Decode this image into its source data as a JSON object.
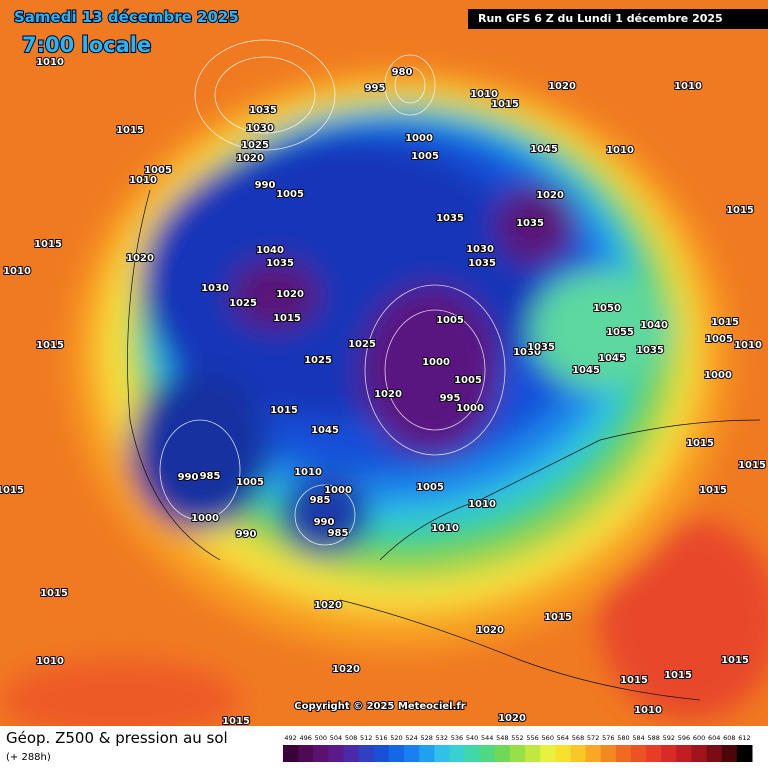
{
  "header": {
    "date": "Samedi 13 décembre 2025",
    "time": "7:00 locale",
    "run": "Run GFS 6 Z du Lundi 1 décembre 2025"
  },
  "map": {
    "copyright": "Copyright © 2025 Meteociel.fr",
    "pressure_labels": [
      "1010",
      "1035",
      "1030",
      "1025",
      "1020",
      "1015",
      "1010",
      "1005",
      "990",
      "1005",
      "980",
      "995",
      "1010",
      "1015",
      "1020",
      "1010",
      "1000",
      "1005",
      "1045",
      "1010",
      "1020",
      "1035",
      "1035",
      "1030",
      "1035",
      "1015",
      "1010",
      "1015",
      "1020",
      "1030",
      "1025",
      "1040",
      "1035",
      "1020",
      "1015",
      "1005",
      "1000",
      "1005",
      "1020",
      "995",
      "1000",
      "1025",
      "1025",
      "1015",
      "1045",
      "1010",
      "990",
      "985",
      "1005",
      "1000",
      "990",
      "1000",
      "985",
      "990",
      "985",
      "1005",
      "1010",
      "1010",
      "1015",
      "1015",
      "1015",
      "1010",
      "1020",
      "1020",
      "1015",
      "1020",
      "1015",
      "1015",
      "1015",
      "1010",
      "1020",
      "1015",
      "1050",
      "1055",
      "1040",
      "1035",
      "1045",
      "1045",
      "1030",
      "1035",
      "1005",
      "1010",
      "1000",
      "1015",
      "1015",
      "1015",
      "1015"
    ]
  },
  "legend": {
    "title": "Géop. Z500 & pression au sol",
    "subtitle": "(+ 288h)",
    "scale": [
      "492",
      "496",
      "500",
      "504",
      "508",
      "512",
      "516",
      "520",
      "524",
      "528",
      "532",
      "536",
      "540",
      "544",
      "548",
      "552",
      "556",
      "560",
      "564",
      "568",
      "572",
      "576",
      "580",
      "584",
      "588",
      "592",
      "596",
      "600",
      "604",
      "608",
      "612"
    ]
  }
}
